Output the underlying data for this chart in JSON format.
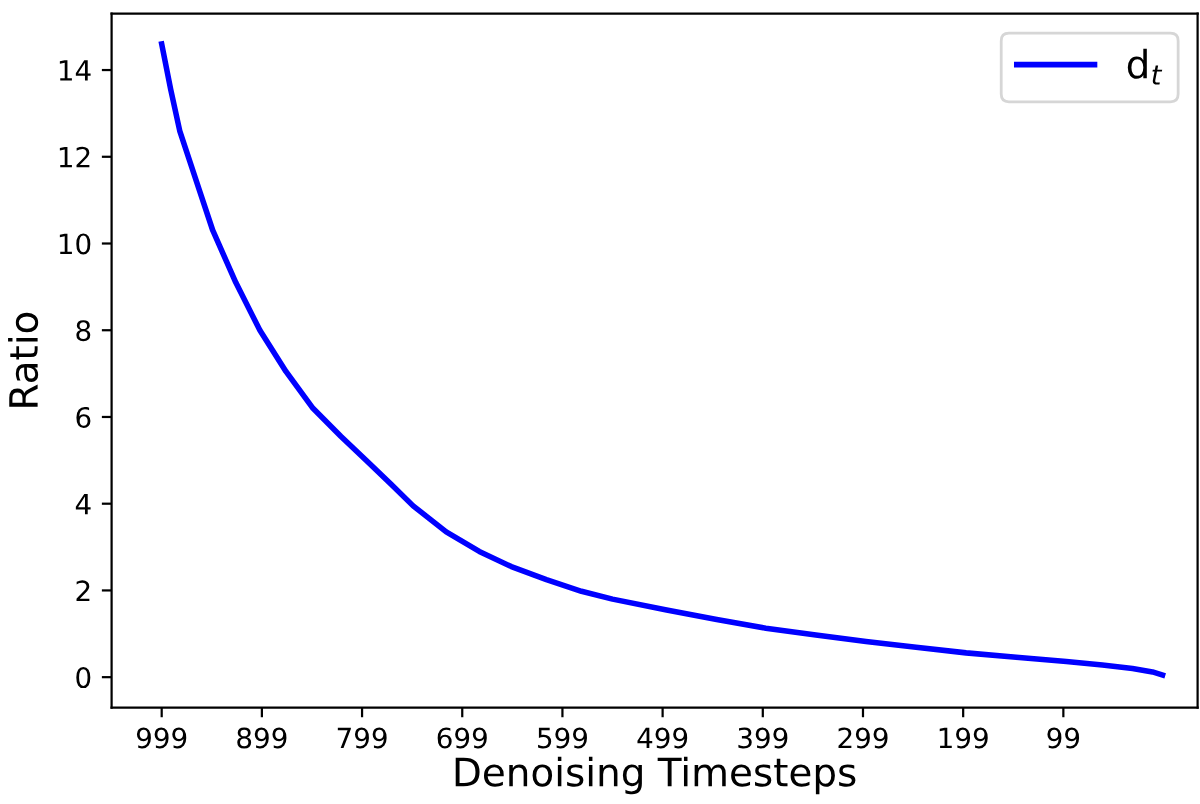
{
  "chart_data": {
    "type": "line",
    "xlabel": "Denoising Timesteps",
    "ylabel": "Ratio",
    "series": [
      {
        "name": "d$_{t}$",
        "color": "#0000ff",
        "x": [
          999,
          990,
          981,
          971,
          961,
          948,
          925,
          901,
          875,
          848,
          820,
          795,
          770,
          748,
          715,
          682,
          650,
          615,
          580,
          549,
          495,
          445,
          396,
          346,
          296,
          246,
          196,
          146,
          96,
          60,
          30,
          10,
          0
        ],
        "values": [
          14.6,
          13.55,
          12.6,
          11.9,
          11.2,
          10.3,
          9.1,
          8.0,
          7.05,
          6.2,
          5.55,
          5.0,
          4.45,
          3.95,
          3.35,
          2.9,
          2.55,
          2.25,
          1.98,
          1.8,
          1.55,
          1.33,
          1.13,
          0.97,
          0.82,
          0.69,
          0.56,
          0.46,
          0.36,
          0.28,
          0.2,
          0.12,
          0.05
        ]
      }
    ],
    "xlim": [
      1049,
      -35
    ],
    "xticks": [
      999,
      899,
      799,
      699,
      599,
      499,
      399,
      299,
      199,
      99
    ],
    "ylim": [
      -0.7,
      15.3
    ],
    "yticks": [
      0,
      2,
      4,
      6,
      8,
      10,
      12,
      14
    ],
    "legend": "top right",
    "grid": false,
    "line_style": "solid",
    "marker": "none"
  }
}
